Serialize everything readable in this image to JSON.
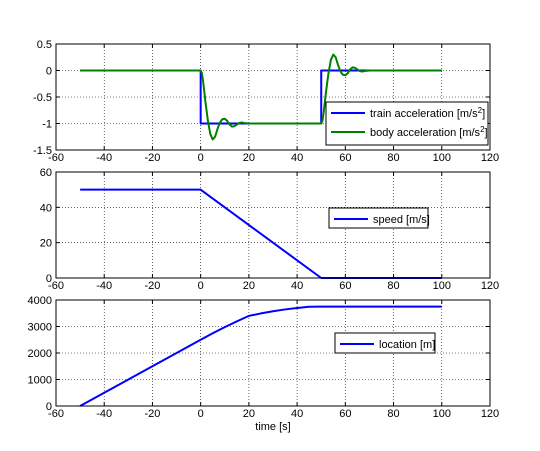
{
  "chart_data": [
    {
      "type": "line",
      "title": "",
      "xlabel": "",
      "ylabel": "",
      "xlim": [
        -60,
        120
      ],
      "ylim": [
        -1.5,
        0.5
      ],
      "xticks": [
        -60,
        -40,
        -20,
        0,
        20,
        40,
        60,
        80,
        100,
        120
      ],
      "yticks": [
        0.5,
        0,
        -0.5,
        -1,
        -1.5
      ],
      "xtick_labels": [
        "-60",
        "-40",
        "-20",
        "0",
        "20",
        "40",
        "60",
        "80",
        "100",
        "120"
      ],
      "ytick_labels": [
        "0.5",
        "0",
        "-0.5",
        "-1",
        "-1.5"
      ],
      "grid": true,
      "legend_position": "bottom-right",
      "series": [
        {
          "name": "train acceleration [m/s²]",
          "color": "#0000ff",
          "x": [
            -50,
            0,
            0,
            50,
            50,
            100
          ],
          "y": [
            0,
            0,
            -1,
            -1,
            0,
            0
          ]
        },
        {
          "name": "body acceleration [m/s²]",
          "color": "#008000",
          "x": [
            -50,
            0,
            0.5,
            1,
            1.5,
            2,
            3,
            4,
            5,
            6,
            7,
            8,
            9,
            10,
            11,
            12,
            13,
            14,
            15,
            16,
            17,
            18,
            20,
            50,
            50.5,
            51,
            51.5,
            52,
            53,
            54,
            55,
            56,
            57,
            58,
            59,
            60,
            61,
            62,
            63,
            64,
            65,
            66,
            67,
            68,
            70,
            100
          ],
          "y": [
            0,
            0,
            -0.05,
            -0.2,
            -0.4,
            -0.6,
            -0.95,
            -1.2,
            -1.3,
            -1.25,
            -1.1,
            -0.98,
            -0.92,
            -0.91,
            -0.95,
            -1.02,
            -1.06,
            -1.05,
            -1.02,
            -0.99,
            -0.98,
            -0.99,
            -1,
            -1,
            -0.95,
            -0.8,
            -0.6,
            -0.4,
            -0.05,
            0.2,
            0.3,
            0.25,
            0.1,
            -0.02,
            -0.08,
            -0.09,
            -0.05,
            0.02,
            0.06,
            0.05,
            0.02,
            -0.01,
            -0.02,
            -0.01,
            0,
            0
          ]
        }
      ]
    },
    {
      "type": "line",
      "title": "",
      "xlabel": "",
      "ylabel": "",
      "xlim": [
        -60,
        120
      ],
      "ylim": [
        0,
        60
      ],
      "xticks": [
        -60,
        -40,
        -20,
        0,
        20,
        40,
        60,
        80,
        100,
        120
      ],
      "yticks": [
        60,
        40,
        20,
        0
      ],
      "xtick_labels": [
        "-60",
        "-40",
        "-20",
        "0",
        "20",
        "40",
        "60",
        "80",
        "100",
        "120"
      ],
      "ytick_labels": [
        "60",
        "40",
        "20",
        "0"
      ],
      "grid": true,
      "legend_position": "right",
      "series": [
        {
          "name": "speed [m/s]",
          "color": "#0000ff",
          "x": [
            -50,
            0,
            50,
            100
          ],
          "y": [
            50,
            50,
            0,
            0
          ]
        }
      ]
    },
    {
      "type": "line",
      "title": "",
      "xlabel": "time [s]",
      "ylabel": "",
      "xlim": [
        -60,
        120
      ],
      "ylim": [
        0,
        4000
      ],
      "xticks": [
        -60,
        -40,
        -20,
        0,
        20,
        40,
        60,
        80,
        100,
        120
      ],
      "yticks": [
        4000,
        3000,
        2000,
        1000,
        0
      ],
      "xtick_labels": [
        "-60",
        "-40",
        "-20",
        "0",
        "20",
        "40",
        "60",
        "80",
        "100",
        "120"
      ],
      "ytick_labels": [
        "4000",
        "3000",
        "2000",
        "1000",
        "0"
      ],
      "grid": true,
      "legend_position": "right",
      "series": [
        {
          "name": "location [m]",
          "color": "#0000ff",
          "x": [
            -50,
            -40,
            -30,
            -20,
            -10,
            0,
            5,
            10,
            15,
            20,
            25,
            30,
            35,
            40,
            45,
            50,
            100
          ],
          "y": [
            0,
            500,
            1000,
            1500,
            2000,
            2500,
            2743.75,
            2975,
            3193.75,
            3400,
            3493.75,
            3575,
            3643.75,
            3700,
            3743.75,
            3750,
            3750
          ]
        }
      ]
    }
  ]
}
